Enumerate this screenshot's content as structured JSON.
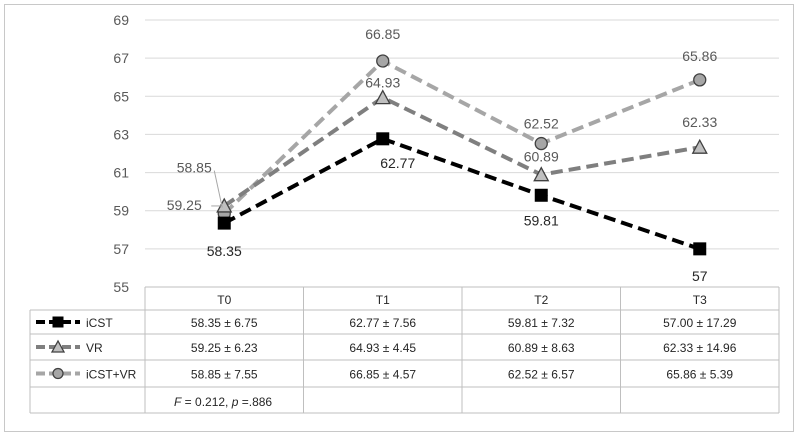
{
  "chart_data": {
    "type": "line",
    "categories": [
      "T0",
      "T1",
      "T2",
      "T3"
    ],
    "ylim": [
      55,
      69
    ],
    "yticks": [
      55,
      57,
      59,
      61,
      63,
      65,
      67,
      69
    ],
    "grid": true,
    "series": [
      {
        "name": "iCST",
        "values": [
          58.35,
          62.77,
          59.81,
          57
        ],
        "labels": [
          "58.35",
          "62.77",
          "59.81",
          "57"
        ],
        "color": "#000000",
        "marker": "square",
        "table": [
          "58.35 ± 6.75",
          "62.77 ± 7.56",
          "59.81 ± 7.32",
          "57.00 ± 17.29"
        ]
      },
      {
        "name": "VR",
        "values": [
          59.25,
          64.93,
          60.89,
          62.33
        ],
        "labels": [
          "59.25",
          "64.93",
          "60.89",
          "62.33"
        ],
        "color": "#7f7f7f",
        "marker": "triangle",
        "table": [
          "59.25 ± 6.23",
          "64.93 ± 4.45",
          "60.89 ± 8.63",
          "62.33 ± 14.96"
        ]
      },
      {
        "name": "iCST+VR",
        "values": [
          58.85,
          66.85,
          62.52,
          65.86
        ],
        "labels": [
          "58.85",
          "66.85",
          "62.52",
          "65.86"
        ],
        "color": "#a6a6a6",
        "marker": "circle",
        "table": [
          "58.85 ± 7.55",
          "66.85 ± 4.57",
          "62.52 ± 6.57",
          "65.86 ± 5.39"
        ]
      }
    ],
    "stat_f_label": "F",
    "stat_f_value": " = 0.212, ",
    "stat_p_label": "p",
    "stat_p_value": " =.886"
  }
}
